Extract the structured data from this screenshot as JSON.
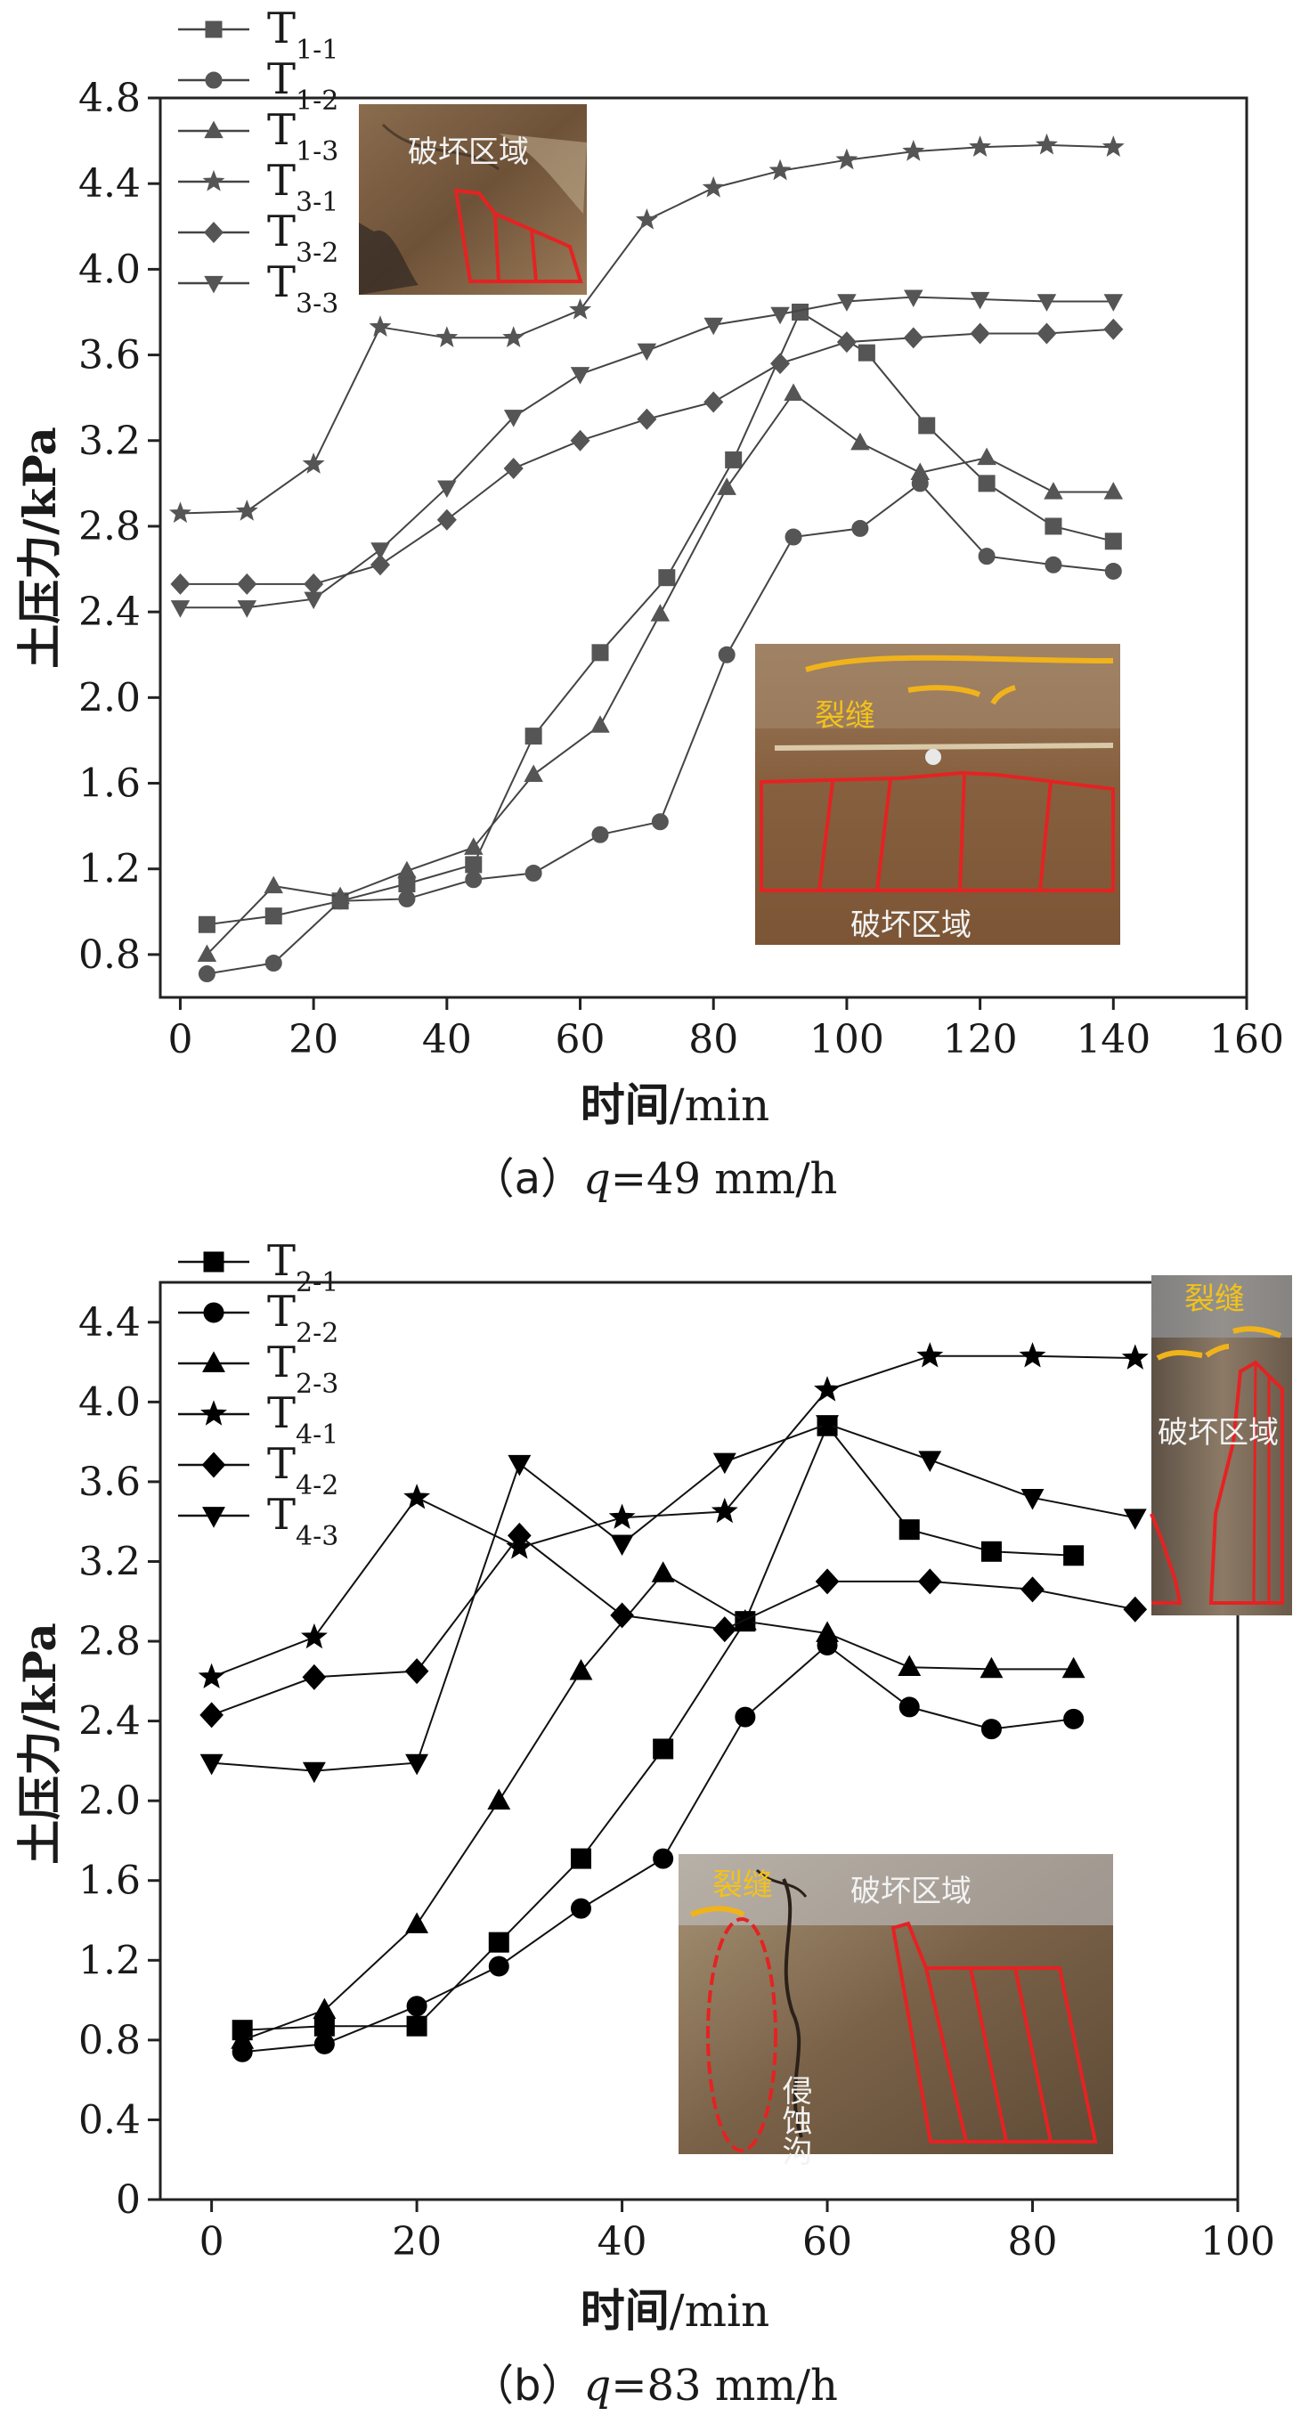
{
  "chart_data": [
    {
      "type": "line",
      "caption": "（a）q=49 mm/h",
      "caption_prefix": "（a）",
      "caption_var": "q",
      "caption_rest": "=49 mm/h",
      "xlabel_main": "时间",
      "xlabel_unit": "/min",
      "ylabel": "土压力/kPa",
      "xlim": [
        -3,
        160
      ],
      "ylim": [
        0.6,
        4.8
      ],
      "xticks": [
        0,
        20,
        40,
        60,
        80,
        100,
        120,
        140,
        160
      ],
      "yticks": [
        "0.8",
        "1.2",
        "1.6",
        "2.0",
        "2.4",
        "2.8",
        "3.2",
        "3.6",
        "4.0",
        "4.4",
        "4.8"
      ],
      "legend_position": "top-left",
      "series": [
        {
          "name": "T",
          "sub": "1-1",
          "marker": "square",
          "color": "#555555",
          "x": [
            4,
            14,
            24,
            34,
            44,
            53,
            63,
            73,
            83,
            93,
            103,
            112,
            121,
            131,
            140
          ],
          "y": [
            0.94,
            0.98,
            1.05,
            1.13,
            1.22,
            1.82,
            2.21,
            2.56,
            3.11,
            3.8,
            3.61,
            3.27,
            3.0,
            2.8,
            2.73
          ]
        },
        {
          "name": "T",
          "sub": "1-2",
          "marker": "circle",
          "color": "#555555",
          "x": [
            4,
            14,
            24,
            34,
            44,
            53,
            63,
            72,
            82,
            92,
            102,
            111,
            121,
            131,
            140
          ],
          "y": [
            0.71,
            0.76,
            1.05,
            1.06,
            1.15,
            1.18,
            1.36,
            1.42,
            2.2,
            2.75,
            2.79,
            3.0,
            2.66,
            2.62,
            2.59
          ]
        },
        {
          "name": "T",
          "sub": "1-3",
          "marker": "triangle",
          "color": "#555555",
          "x": [
            4,
            14,
            24,
            34,
            44,
            53,
            63,
            72,
            82,
            92,
            102,
            111,
            121,
            131,
            140
          ],
          "y": [
            0.8,
            1.12,
            1.07,
            1.19,
            1.3,
            1.64,
            1.87,
            2.39,
            2.98,
            3.42,
            3.19,
            3.05,
            3.12,
            2.96,
            2.96
          ]
        },
        {
          "name": "T",
          "sub": "3-1",
          "marker": "star",
          "color": "#555555",
          "x": [
            0,
            10,
            20,
            30,
            40,
            50,
            60,
            70,
            80,
            90,
            100,
            110,
            120,
            130,
            140
          ],
          "y": [
            2.86,
            2.87,
            3.09,
            3.73,
            3.68,
            3.68,
            3.81,
            4.23,
            4.38,
            4.46,
            4.51,
            4.55,
            4.57,
            4.58,
            4.57
          ]
        },
        {
          "name": "T",
          "sub": "3-2",
          "marker": "diamond",
          "color": "#555555",
          "x": [
            0,
            10,
            20,
            30,
            40,
            50,
            60,
            70,
            80,
            90,
            100,
            110,
            120,
            130,
            140
          ],
          "y": [
            2.53,
            2.53,
            2.53,
            2.62,
            2.83,
            3.07,
            3.2,
            3.3,
            3.38,
            3.56,
            3.66,
            3.68,
            3.7,
            3.7,
            3.72
          ]
        },
        {
          "name": "T",
          "sub": "3-3",
          "marker": "tri-down",
          "color": "#555555",
          "x": [
            0,
            10,
            20,
            30,
            40,
            50,
            60,
            70,
            80,
            90,
            100,
            110,
            120,
            130,
            140
          ],
          "y": [
            2.42,
            2.42,
            2.46,
            2.69,
            2.98,
            3.31,
            3.51,
            3.62,
            3.74,
            3.79,
            3.85,
            3.87,
            3.86,
            3.85,
            3.85
          ]
        }
      ],
      "photos": [
        {
          "label": "破坏区域"
        },
        {
          "label_top": "裂缝",
          "label_bottom": "破坏区域"
        }
      ]
    },
    {
      "type": "line",
      "caption": "（b）q=83 mm/h",
      "caption_prefix": "（b）",
      "caption_var": "q",
      "caption_rest": "=83 mm/h",
      "xlabel_main": "时间",
      "xlabel_unit": "/min",
      "ylabel": "土压力/kPa",
      "xlim": [
        -5,
        100
      ],
      "ylim": [
        0,
        4.6
      ],
      "xticks": [
        0,
        20,
        40,
        60,
        80,
        100
      ],
      "yticks": [
        "0",
        "0.4",
        "0.8",
        "1.2",
        "1.6",
        "2.0",
        "2.4",
        "2.8",
        "3.2",
        "3.6",
        "4.0",
        "4.4"
      ],
      "legend_position": "top-left",
      "series": [
        {
          "name": "T",
          "sub": "2-1",
          "marker": "square",
          "color": "#000000",
          "x": [
            3,
            11,
            20,
            28,
            36,
            44,
            52,
            60,
            68,
            76,
            84
          ],
          "y": [
            0.85,
            0.87,
            0.87,
            1.29,
            1.71,
            2.26,
            2.9,
            3.88,
            3.36,
            3.25,
            3.23
          ]
        },
        {
          "name": "T",
          "sub": "2-2",
          "marker": "circle",
          "color": "#000000",
          "x": [
            3,
            11,
            20,
            28,
            36,
            44,
            52,
            60,
            68,
            76,
            84
          ],
          "y": [
            0.74,
            0.78,
            0.97,
            1.17,
            1.46,
            1.71,
            2.42,
            2.78,
            2.47,
            2.36,
            2.41
          ]
        },
        {
          "name": "T",
          "sub": "2-3",
          "marker": "triangle",
          "color": "#000000",
          "x": [
            3,
            11,
            20,
            28,
            36,
            44,
            52,
            60,
            68,
            76,
            84
          ],
          "y": [
            0.8,
            0.95,
            1.38,
            2.0,
            2.65,
            3.14,
            2.9,
            2.84,
            2.67,
            2.66,
            2.66
          ]
        },
        {
          "name": "T",
          "sub": "4-1",
          "marker": "star",
          "color": "#000000",
          "x": [
            0,
            10,
            20,
            30,
            40,
            50,
            60,
            70,
            80,
            90
          ],
          "y": [
            2.62,
            2.82,
            3.52,
            3.27,
            3.42,
            3.45,
            4.06,
            4.23,
            4.23,
            4.22
          ]
        },
        {
          "name": "T",
          "sub": "4-2",
          "marker": "diamond",
          "color": "#000000",
          "x": [
            0,
            10,
            20,
            30,
            40,
            50,
            60,
            70,
            80,
            90
          ],
          "y": [
            2.43,
            2.62,
            2.65,
            3.33,
            2.93,
            2.86,
            3.1,
            3.1,
            3.06,
            2.96
          ]
        },
        {
          "name": "T",
          "sub": "4-3",
          "marker": "tri-down",
          "color": "#000000",
          "x": [
            0,
            10,
            20,
            30,
            40,
            50,
            60,
            70,
            80,
            90
          ],
          "y": [
            2.19,
            2.15,
            2.19,
            3.69,
            3.29,
            3.7,
            3.89,
            3.71,
            3.52,
            3.42
          ]
        }
      ],
      "photos": [
        {
          "label_top": "裂缝",
          "label_bottom": "破坏区域"
        },
        {
          "label_top": "裂缝",
          "label_mid": "破坏区域",
          "label_bottom": "侵蚀沟"
        }
      ]
    }
  ]
}
